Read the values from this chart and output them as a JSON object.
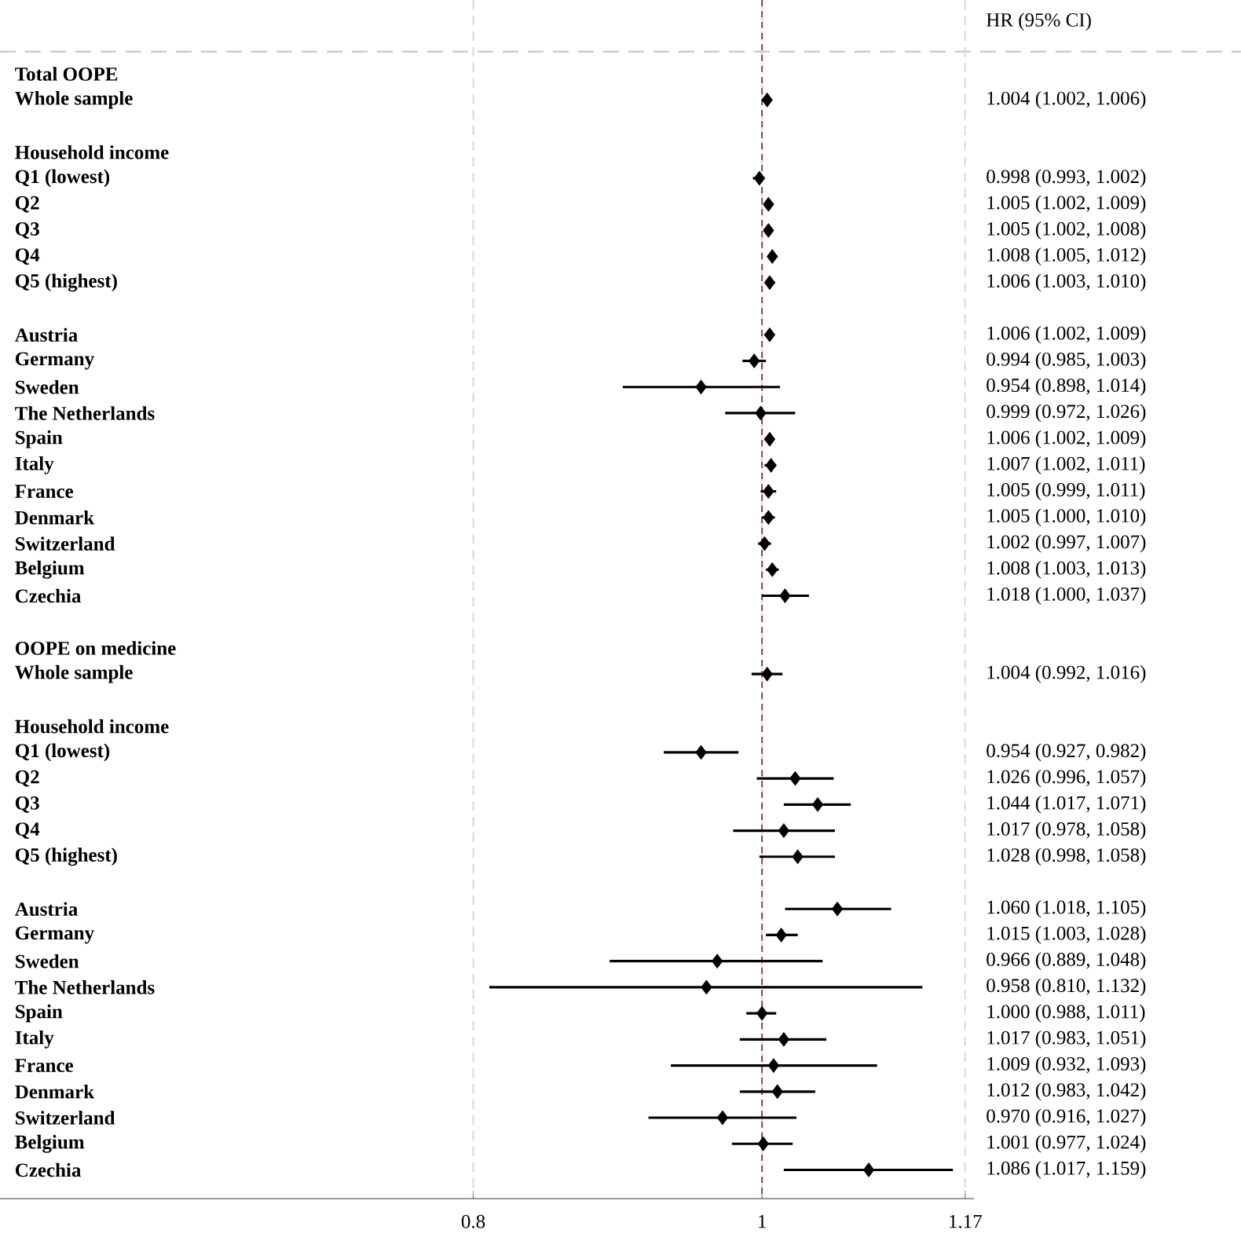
{
  "chart_data": {
    "type": "scatter",
    "orientation": "horizontal",
    "log": "x",
    "marker": "diamond",
    "grid": "x",
    "categories": [
      "Total OOPE",
      "Whole sample",
      null,
      "Household income",
      "Q1 (lowest)",
      "Q2",
      "Q3",
      "Q4",
      "Q5 (highest)",
      null,
      "Austria",
      "Germany",
      "Sweden",
      "The Netherlands",
      "Spain",
      "Italy",
      "France",
      "Denmark",
      "Switzerland",
      "Belgium",
      "Czechia",
      null,
      "OOPE on medicine",
      "Whole sample",
      null,
      "Household income",
      "Q1 (lowest)",
      "Q2",
      "Q3",
      "Q4",
      "Q5 (highest)",
      null,
      "Austria",
      "Germany",
      "Sweden",
      "The Netherlands",
      "Spain",
      "Italy",
      "France",
      "Denmark",
      "Switzerland",
      "Belgium",
      "Czechia"
    ],
    "series": [
      {
        "color": "#000000",
        "values": [
          null,
          1.004,
          null,
          null,
          0.998,
          1.005,
          1.005,
          1.008,
          1.006,
          null,
          1.006,
          0.994,
          0.954,
          0.999,
          1.006,
          1.007,
          1.005,
          1.005,
          1.002,
          1.008,
          1.018,
          null,
          null,
          1.004,
          null,
          null,
          0.954,
          1.026,
          1.044,
          1.017,
          1.028,
          null,
          1.06,
          1.015,
          0.966,
          0.958,
          1.0,
          1.017,
          1.009,
          1.012,
          0.97,
          1.001,
          1.086
        ],
        "errors": [
          null,
          [
            1.002,
            1.006
          ],
          null,
          null,
          [
            0.993,
            1.002
          ],
          [
            1.002,
            1.009
          ],
          [
            1.002,
            1.008
          ],
          [
            1.005,
            1.012
          ],
          [
            1.003,
            1.01
          ],
          null,
          [
            1.002,
            1.009
          ],
          [
            0.985,
            1.003
          ],
          [
            0.898,
            1.014
          ],
          [
            0.972,
            1.026
          ],
          [
            1.002,
            1.009
          ],
          [
            1.002,
            1.011
          ],
          [
            0.999,
            1.011
          ],
          [
            1.0,
            1.01
          ],
          [
            0.997,
            1.007
          ],
          [
            1.003,
            1.013
          ],
          [
            1.0,
            1.037
          ],
          null,
          null,
          [
            0.992,
            1.016
          ],
          null,
          null,
          [
            0.927,
            0.982
          ],
          [
            0.996,
            1.057
          ],
          [
            1.017,
            1.071
          ],
          [
            0.978,
            1.058
          ],
          [
            0.998,
            1.058
          ],
          null,
          [
            1.018,
            1.105
          ],
          [
            1.003,
            1.028
          ],
          [
            0.889,
            1.048
          ],
          [
            0.81,
            1.132
          ],
          [
            0.988,
            1.011
          ],
          [
            0.983,
            1.051
          ],
          [
            0.932,
            1.093
          ],
          [
            0.983,
            1.042
          ],
          [
            0.916,
            1.027
          ],
          [
            0.977,
            1.024
          ],
          [
            1.017,
            1.159
          ]
        ],
        "value_labels": [
          null,
          "1.004 (1.002, 1.006)",
          null,
          null,
          "0.998 (0.993, 1.002)",
          "1.005 (1.002, 1.009)",
          "1.005 (1.002, 1.008)",
          "1.008 (1.005, 1.012)",
          "1.006 (1.003, 1.010)",
          null,
          "1.006 (1.002, 1.009)",
          "0.994 (0.985, 1.003)",
          "0.954 (0.898, 1.014)",
          "0.999 (0.972, 1.026)",
          "1.006 (1.002, 1.009)",
          "1.007 (1.002, 1.011)",
          "1.005 (0.999, 1.011)",
          "1.005 (1.000, 1.010)",
          "1.002 (0.997, 1.007)",
          "1.008 (1.003, 1.013)",
          "1.018 (1.000, 1.037)",
          null,
          null,
          "1.004 (0.992, 1.016)",
          null,
          null,
          "0.954 (0.927, 0.982)",
          "1.026 (0.996, 1.057)",
          "1.044 (1.017, 1.071)",
          "1.017 (0.978, 1.058)",
          "1.028 (0.998, 1.058)",
          null,
          "1.060 (1.018, 1.105)",
          "1.015 (1.003, 1.028)",
          "0.966 (0.889, 1.048)",
          "0.958 (0.810, 1.132)",
          "1.000 (0.988, 1.011)",
          "1.017 (0.983, 1.051)",
          "1.009 (0.932, 1.093)",
          "1.012 (0.983, 1.042)",
          "0.970 (0.916, 1.027)",
          "1.001 (0.977, 1.024)",
          "1.086 (1.017, 1.159)"
        ]
      }
    ],
    "xlim": [
      0.555,
      1.178
    ],
    "xticks": [
      0.8,
      1,
      1.17
    ],
    "ref_lines": [
      {
        "axis": "x",
        "value": 1,
        "color": "#8b1a1a",
        "line_style": "dashed"
      }
    ],
    "annotations": [
      "HR (95% CI)"
    ]
  }
}
